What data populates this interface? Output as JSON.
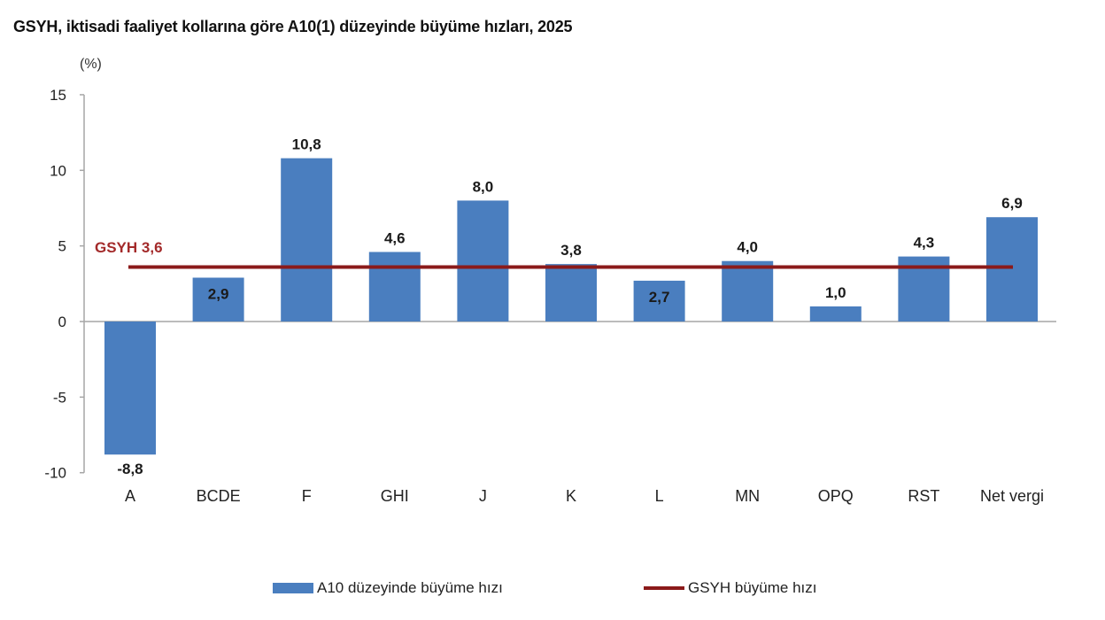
{
  "title": "GSYH, iktisadi faaliyet kollarına göre A10(1) düzeyinde büyüme hızları, 2025",
  "unit_label": "(%)",
  "colors": {
    "bar": "#4a7ebf",
    "reference_line": "#8b1a1a",
    "reference_label": "#a32a2a",
    "axis": "#a6a6a6"
  },
  "reference": {
    "label": "GSYH 3,6",
    "value": 3.6
  },
  "legend": {
    "bar_label": "A10 düzeyinde büyüme hızı",
    "line_label": "GSYH büyüme hızı"
  },
  "chart_data": {
    "type": "bar",
    "title": "GSYH, iktisadi faaliyet kollarına göre A10(1) düzeyinde büyüme hızları, 2025",
    "xlabel": "",
    "ylabel": "(%)",
    "ylim": [
      -10,
      15
    ],
    "yticks": [
      15,
      10,
      5,
      0,
      -5,
      -10
    ],
    "grid": false,
    "legend_position": "bottom",
    "categories": [
      "A",
      "BCDE",
      "F",
      "GHI",
      "J",
      "K",
      "L",
      "MN",
      "OPQ",
      "RST",
      "Net vergi"
    ],
    "series": [
      {
        "name": "A10 düzeyinde büyüme hızı",
        "type": "bar",
        "values": [
          -8.8,
          2.9,
          10.8,
          4.6,
          8.0,
          3.8,
          2.7,
          4.0,
          1.0,
          4.3,
          6.9
        ],
        "labels": [
          "-8,8",
          "2,9",
          "10,8",
          "4,6",
          "8,0",
          "3,8",
          "2,7",
          "4,0",
          "1,0",
          "4,3",
          "6,9"
        ]
      },
      {
        "name": "GSYH büyüme hızı",
        "type": "line",
        "values": [
          3.6,
          3.6,
          3.6,
          3.6,
          3.6,
          3.6,
          3.6,
          3.6,
          3.6,
          3.6,
          3.6
        ]
      }
    ],
    "annotations": [
      "GSYH 3,6"
    ]
  }
}
